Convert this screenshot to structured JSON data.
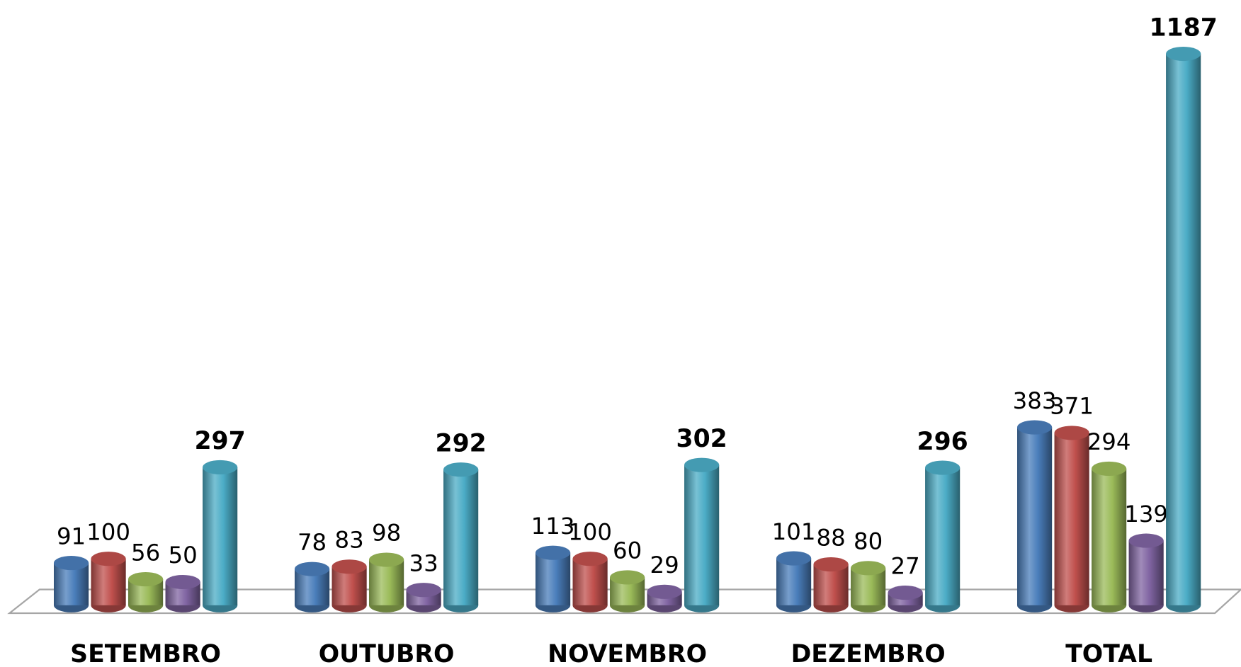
{
  "chart_data": {
    "type": "bar3d",
    "categories": [
      "SETEMBRO",
      "OUTUBRO",
      "NOVEMBRO",
      "DEZEMBRO",
      "TOTAL"
    ],
    "series": [
      {
        "color": "#4a7ebb",
        "values": [
          91,
          78,
          113,
          101,
          383
        ]
      },
      {
        "color": "#c0504d",
        "values": [
          100,
          83,
          100,
          88,
          371
        ]
      },
      {
        "color": "#9bbb59",
        "values": [
          56,
          98,
          60,
          80,
          294
        ]
      },
      {
        "color": "#8064a2",
        "values": [
          50,
          33,
          29,
          27,
          139
        ]
      },
      {
        "color": "#4bacc6",
        "values": [
          297,
          292,
          302,
          296,
          1187
        ],
        "bold_labels": true
      }
    ]
  }
}
